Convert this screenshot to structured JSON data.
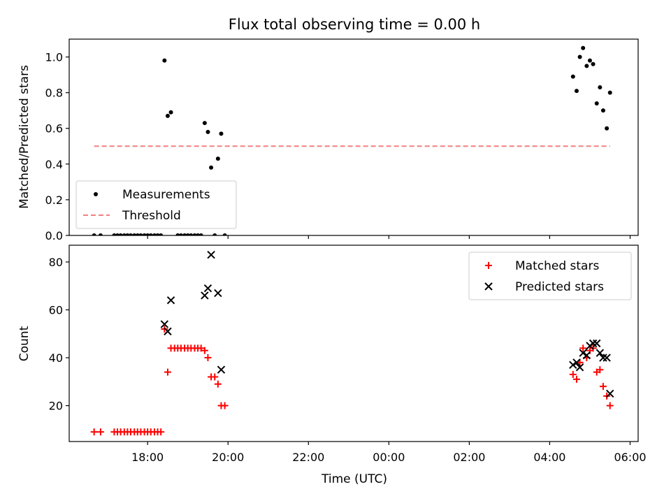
{
  "figure": {
    "title": "Flux total observing time = 0.00 h",
    "xlabel": "Time (UTC)"
  },
  "chart_data": [
    {
      "type": "scatter",
      "panel": "top",
      "ylabel": "Matched/Predicted stars",
      "ylim": [
        0,
        1.1
      ],
      "yticks": [
        0.0,
        0.2,
        0.4,
        0.6,
        0.8,
        1.0
      ],
      "ytick_labels": [
        "0.0",
        "0.2",
        "0.4",
        "0.6",
        "0.8",
        "1.0"
      ],
      "x_unit": "hours since 00:00 UTC (negative = previous day)",
      "xlim": [
        -7.95,
        6.2
      ],
      "xticks": [
        -6,
        -4,
        -2,
        0,
        2,
        4,
        6
      ],
      "show_xtick_labels": false,
      "legend": {
        "placement": "lower-left",
        "entries": [
          {
            "label": "Measurements",
            "marker": "dot",
            "color": "#000000"
          },
          {
            "label": "Threshold",
            "marker": "dashed-line",
            "color": "#f08080"
          }
        ]
      },
      "series": [
        {
          "name": "Measurements",
          "color": "#000000",
          "points": [
            [
              -7.33,
              0.0
            ],
            [
              -7.17,
              0.0
            ],
            [
              -6.83,
              0.0
            ],
            [
              -6.75,
              0.0
            ],
            [
              -6.67,
              0.0
            ],
            [
              -6.58,
              0.0
            ],
            [
              -6.5,
              0.0
            ],
            [
              -6.42,
              0.0
            ],
            [
              -6.33,
              0.0
            ],
            [
              -6.25,
              0.0
            ],
            [
              -6.17,
              0.0
            ],
            [
              -6.08,
              0.0
            ],
            [
              -6.0,
              0.0
            ],
            [
              -5.92,
              0.0
            ],
            [
              -5.83,
              0.0
            ],
            [
              -5.75,
              0.0
            ],
            [
              -5.67,
              0.0
            ],
            [
              -5.58,
              0.98
            ],
            [
              -5.5,
              0.67
            ],
            [
              -5.42,
              0.69
            ],
            [
              -5.25,
              0.0
            ],
            [
              -5.17,
              0.0
            ],
            [
              -5.08,
              0.0
            ],
            [
              -5.0,
              0.0
            ],
            [
              -4.92,
              0.0
            ],
            [
              -4.83,
              0.0
            ],
            [
              -4.75,
              0.0
            ],
            [
              -4.67,
              0.0
            ],
            [
              -4.58,
              0.63
            ],
            [
              -4.5,
              0.58
            ],
            [
              -4.42,
              0.38
            ],
            [
              -4.33,
              0.0
            ],
            [
              -4.25,
              0.43
            ],
            [
              -4.17,
              0.57
            ],
            [
              -4.08,
              0.0
            ],
            [
              4.58,
              0.89
            ],
            [
              4.67,
              0.81
            ],
            [
              4.75,
              1.0
            ],
            [
              4.83,
              1.05
            ],
            [
              4.92,
              0.95
            ],
            [
              5.0,
              0.98
            ],
            [
              5.08,
              0.96
            ],
            [
              5.17,
              0.74
            ],
            [
              5.25,
              0.83
            ],
            [
              5.33,
              0.7
            ],
            [
              5.42,
              0.6
            ],
            [
              5.5,
              0.8
            ]
          ]
        },
        {
          "name": "Threshold",
          "color": "#f08080",
          "line": "dashed",
          "points": [
            [
              -7.33,
              0.5
            ],
            [
              5.5,
              0.5
            ]
          ]
        }
      ]
    },
    {
      "type": "scatter",
      "panel": "bottom",
      "ylabel": "Count",
      "ylim": [
        5,
        87
      ],
      "yticks": [
        20,
        40,
        60,
        80
      ],
      "ytick_labels": [
        "20",
        "40",
        "60",
        "80"
      ],
      "x_unit": "hours since 00:00 UTC (negative = previous day)",
      "xlim": [
        -7.95,
        6.2
      ],
      "xticks": [
        -6,
        -4,
        -2,
        0,
        2,
        4,
        6
      ],
      "xtick_labels": [
        "18:00",
        "20:00",
        "22:00",
        "00:00",
        "02:00",
        "04:00",
        "06:00"
      ],
      "legend": {
        "placement": "top-right",
        "entries": [
          {
            "label": "Matched stars",
            "marker": "plus",
            "color": "#ff0000"
          },
          {
            "label": "Predicted stars",
            "marker": "x",
            "color": "#000000"
          }
        ]
      },
      "series": [
        {
          "name": "Matched stars",
          "color": "#ff0000",
          "marker": "plus",
          "points": [
            [
              -7.33,
              9
            ],
            [
              -7.17,
              9
            ],
            [
              -6.83,
              9
            ],
            [
              -6.75,
              9
            ],
            [
              -6.67,
              9
            ],
            [
              -6.58,
              9
            ],
            [
              -6.5,
              9
            ],
            [
              -6.42,
              9
            ],
            [
              -6.33,
              9
            ],
            [
              -6.25,
              9
            ],
            [
              -6.17,
              9
            ],
            [
              -6.08,
              9
            ],
            [
              -6.0,
              9
            ],
            [
              -5.92,
              9
            ],
            [
              -5.83,
              9
            ],
            [
              -5.75,
              9
            ],
            [
              -5.67,
              9
            ],
            [
              -5.58,
              52
            ],
            [
              -5.5,
              34
            ],
            [
              -5.42,
              44
            ],
            [
              -5.33,
              44
            ],
            [
              -5.25,
              44
            ],
            [
              -5.17,
              44
            ],
            [
              -5.08,
              44
            ],
            [
              -5.0,
              44
            ],
            [
              -4.92,
              44
            ],
            [
              -4.83,
              44
            ],
            [
              -4.75,
              44
            ],
            [
              -4.67,
              44
            ],
            [
              -4.58,
              43
            ],
            [
              -4.5,
              40
            ],
            [
              -4.42,
              32
            ],
            [
              -4.33,
              32
            ],
            [
              -4.25,
              29
            ],
            [
              -4.17,
              20
            ],
            [
              -4.08,
              20
            ],
            [
              4.58,
              33
            ],
            [
              4.67,
              31
            ],
            [
              4.75,
              38
            ],
            [
              4.83,
              44
            ],
            [
              4.92,
              40
            ],
            [
              5.0,
              43
            ],
            [
              5.08,
              44
            ],
            [
              5.17,
              34
            ],
            [
              5.25,
              35
            ],
            [
              5.33,
              28
            ],
            [
              5.42,
              24
            ],
            [
              5.5,
              20
            ]
          ]
        },
        {
          "name": "Predicted stars",
          "color": "#000000",
          "marker": "x",
          "points": [
            [
              -5.58,
              54
            ],
            [
              -5.5,
              51
            ],
            [
              -5.42,
              64
            ],
            [
              -4.58,
              66
            ],
            [
              -4.5,
              69
            ],
            [
              -4.42,
              83
            ],
            [
              -4.25,
              67
            ],
            [
              -4.17,
              35
            ],
            [
              4.58,
              37
            ],
            [
              4.67,
              38
            ],
            [
              4.75,
              36
            ],
            [
              4.83,
              42
            ],
            [
              4.92,
              41
            ],
            [
              5.0,
              45
            ],
            [
              5.08,
              46
            ],
            [
              5.17,
              46
            ],
            [
              5.25,
              42
            ],
            [
              5.33,
              40
            ],
            [
              5.42,
              40
            ],
            [
              5.5,
              25
            ]
          ]
        }
      ]
    }
  ]
}
